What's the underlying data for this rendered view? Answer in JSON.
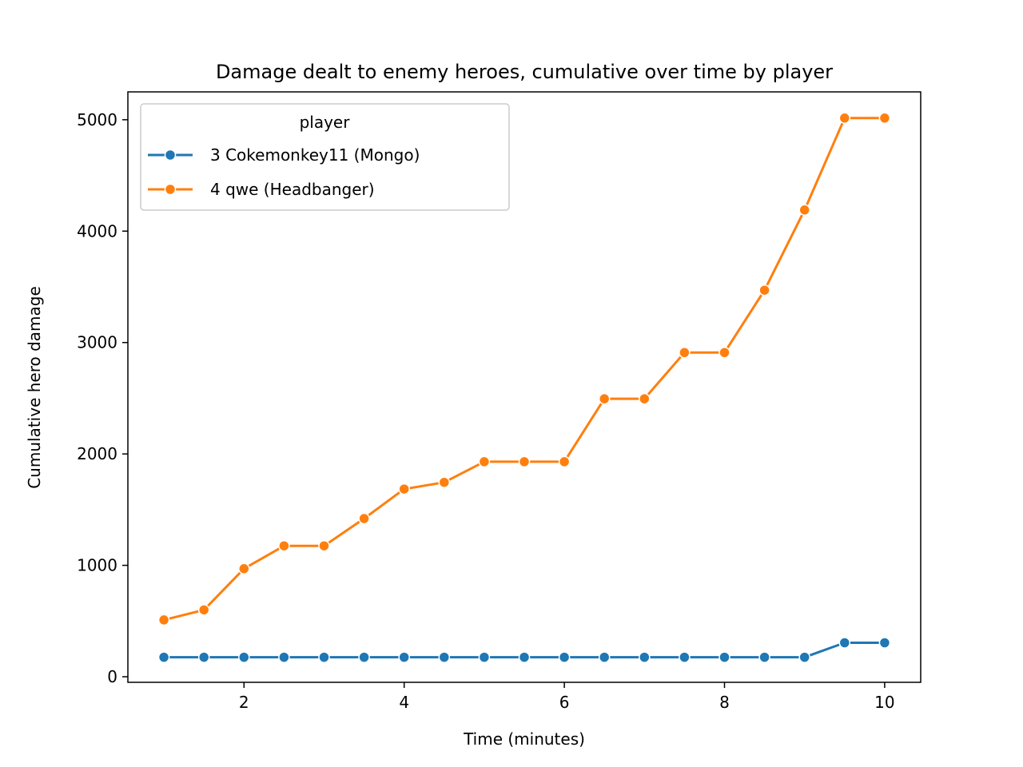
{
  "chart_data": {
    "type": "line",
    "title": "Damage dealt to enemy heroes, cumulative over time by player",
    "xlabel": "Time (minutes)",
    "ylabel": "Cumulative hero damage",
    "xlim": [
      0.55,
      10.45
    ],
    "ylim": [
      -50,
      5250
    ],
    "xticks": [
      2,
      4,
      6,
      8,
      10
    ],
    "yticks": [
      0,
      1000,
      2000,
      3000,
      4000,
      5000
    ],
    "grid": false,
    "legend": {
      "title": "player",
      "placement": "top-left"
    },
    "x": [
      1,
      1.5,
      2,
      2.5,
      3,
      3.5,
      4,
      4.5,
      5,
      5.5,
      6,
      6.5,
      7,
      7.5,
      8,
      8.5,
      9,
      9.5,
      10
    ],
    "series": [
      {
        "name": "3 Cokemonkey11 (Mongo)",
        "color": "#1f77b4",
        "values": [
          175,
          175,
          175,
          175,
          175,
          175,
          175,
          175,
          175,
          175,
          175,
          175,
          175,
          175,
          175,
          175,
          175,
          305,
          305
        ]
      },
      {
        "name": "4 qwe (Headbanger)",
        "color": "#ff7f0e",
        "values": [
          510,
          600,
          970,
          1175,
          1175,
          1420,
          1685,
          1745,
          1930,
          1930,
          1930,
          2495,
          2495,
          2910,
          2910,
          3470,
          4190,
          5015,
          5015
        ]
      }
    ]
  }
}
